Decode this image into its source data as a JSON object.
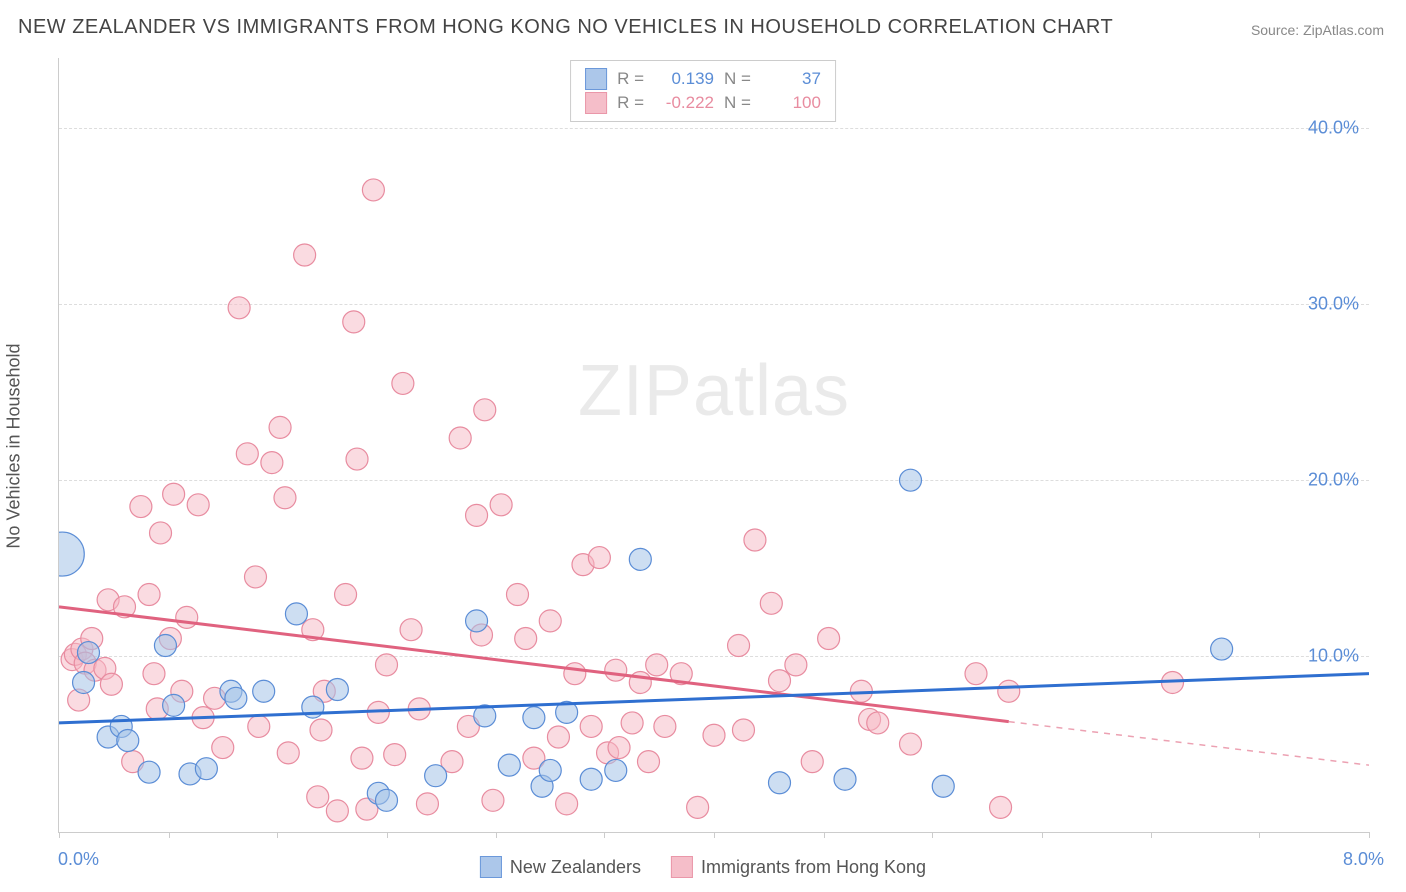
{
  "title": "NEW ZEALANDER VS IMMIGRANTS FROM HONG KONG NO VEHICLES IN HOUSEHOLD CORRELATION CHART",
  "source": "Source: ZipAtlas.com",
  "y_axis_label": "No Vehicles in Household",
  "watermark": "ZIPatlas",
  "corner_labels": {
    "bottom_left": "0.0%",
    "bottom_right": "8.0%"
  },
  "stats": {
    "series_a": {
      "r_label": "R =",
      "r_value": "0.139",
      "n_label": "N =",
      "n_value": "37"
    },
    "series_b": {
      "r_label": "R =",
      "r_value": "-0.222",
      "n_label": "N =",
      "n_value": "100"
    }
  },
  "legend": {
    "a_label": "New Zealanders",
    "b_label": "Immigrants from Hong Kong"
  },
  "chart": {
    "type": "scatter",
    "xlim": [
      0,
      8
    ],
    "ylim": [
      0,
      44
    ],
    "x_ticks": [
      0,
      0.67,
      1.33,
      2.0,
      2.67,
      3.33,
      4.0,
      4.67,
      5.33,
      6.0,
      6.67,
      7.33,
      8.0
    ],
    "y_gridlines": [
      {
        "value": 10,
        "label": "10.0%"
      },
      {
        "value": 20,
        "label": "20.0%"
      },
      {
        "value": 30,
        "label": "30.0%"
      },
      {
        "value": 40,
        "label": "40.0%"
      }
    ],
    "background_color": "#ffffff",
    "grid_color": "#dddddd",
    "axis_color": "#cccccc",
    "label_color": "#5b8dd6",
    "title_color": "#444444",
    "title_fontsize": 20,
    "label_fontsize": 18,
    "series_a": {
      "name": "New Zealanders",
      "fill": "#a4c2e8",
      "fill_opacity": 0.55,
      "stroke": "#5b8dd6",
      "marker_radius": 11,
      "trend_color": "#2f6fd0",
      "trend_width": 3,
      "trend_line": {
        "x1": 0,
        "y1": 6.2,
        "x2": 8.0,
        "y2": 9.0
      },
      "points": [
        {
          "x": 0.02,
          "y": 15.8,
          "r": 22
        },
        {
          "x": 0.15,
          "y": 8.5
        },
        {
          "x": 0.18,
          "y": 10.2
        },
        {
          "x": 0.3,
          "y": 5.4
        },
        {
          "x": 0.38,
          "y": 6.0
        },
        {
          "x": 0.42,
          "y": 5.2
        },
        {
          "x": 0.55,
          "y": 3.4
        },
        {
          "x": 0.65,
          "y": 10.6
        },
        {
          "x": 0.7,
          "y": 7.2
        },
        {
          "x": 0.8,
          "y": 3.3
        },
        {
          "x": 0.9,
          "y": 3.6
        },
        {
          "x": 1.05,
          "y": 8.0
        },
        {
          "x": 1.08,
          "y": 7.6
        },
        {
          "x": 1.25,
          "y": 8.0
        },
        {
          "x": 1.45,
          "y": 12.4
        },
        {
          "x": 1.55,
          "y": 7.1
        },
        {
          "x": 1.7,
          "y": 8.1
        },
        {
          "x": 1.95,
          "y": 2.2
        },
        {
          "x": 2.0,
          "y": 1.8
        },
        {
          "x": 2.3,
          "y": 3.2
        },
        {
          "x": 2.55,
          "y": 12.0
        },
        {
          "x": 2.6,
          "y": 6.6
        },
        {
          "x": 2.75,
          "y": 3.8
        },
        {
          "x": 2.9,
          "y": 6.5
        },
        {
          "x": 2.95,
          "y": 2.6
        },
        {
          "x": 3.0,
          "y": 3.5
        },
        {
          "x": 3.1,
          "y": 6.8
        },
        {
          "x": 3.25,
          "y": 3.0
        },
        {
          "x": 3.4,
          "y": 3.5
        },
        {
          "x": 3.55,
          "y": 15.5
        },
        {
          "x": 4.4,
          "y": 2.8
        },
        {
          "x": 4.8,
          "y": 3.0
        },
        {
          "x": 5.2,
          "y": 20.0
        },
        {
          "x": 5.4,
          "y": 2.6
        },
        {
          "x": 7.1,
          "y": 10.4
        }
      ]
    },
    "series_b": {
      "name": "Immigrants from Hong Kong",
      "fill": "#f5b8c4",
      "fill_opacity": 0.5,
      "stroke": "#e88ca0",
      "marker_radius": 11,
      "trend_color": "#e0627f",
      "trend_width": 3,
      "trend_solid_xmax": 5.8,
      "trend_line": {
        "x1": 0,
        "y1": 12.8,
        "x2": 8.0,
        "y2": 3.8
      },
      "points": [
        {
          "x": 0.08,
          "y": 9.8
        },
        {
          "x": 0.1,
          "y": 10.1
        },
        {
          "x": 0.12,
          "y": 7.5
        },
        {
          "x": 0.14,
          "y": 10.4
        },
        {
          "x": 0.16,
          "y": 9.6
        },
        {
          "x": 0.2,
          "y": 11.0
        },
        {
          "x": 0.22,
          "y": 9.2
        },
        {
          "x": 0.28,
          "y": 9.3
        },
        {
          "x": 0.3,
          "y": 13.2
        },
        {
          "x": 0.32,
          "y": 8.4
        },
        {
          "x": 0.4,
          "y": 12.8
        },
        {
          "x": 0.45,
          "y": 4.0
        },
        {
          "x": 0.5,
          "y": 18.5
        },
        {
          "x": 0.55,
          "y": 13.5
        },
        {
          "x": 0.58,
          "y": 9.0
        },
        {
          "x": 0.6,
          "y": 7.0
        },
        {
          "x": 0.62,
          "y": 17.0
        },
        {
          "x": 0.68,
          "y": 11.0
        },
        {
          "x": 0.7,
          "y": 19.2
        },
        {
          "x": 0.75,
          "y": 8.0
        },
        {
          "x": 0.78,
          "y": 12.2
        },
        {
          "x": 0.85,
          "y": 18.6
        },
        {
          "x": 0.88,
          "y": 6.5
        },
        {
          "x": 0.95,
          "y": 7.6
        },
        {
          "x": 1.0,
          "y": 4.8
        },
        {
          "x": 1.1,
          "y": 29.8
        },
        {
          "x": 1.15,
          "y": 21.5
        },
        {
          "x": 1.2,
          "y": 14.5
        },
        {
          "x": 1.22,
          "y": 6.0
        },
        {
          "x": 1.3,
          "y": 21.0
        },
        {
          "x": 1.35,
          "y": 23.0
        },
        {
          "x": 1.38,
          "y": 19.0
        },
        {
          "x": 1.4,
          "y": 4.5
        },
        {
          "x": 1.5,
          "y": 32.8
        },
        {
          "x": 1.55,
          "y": 11.5
        },
        {
          "x": 1.58,
          "y": 2.0
        },
        {
          "x": 1.6,
          "y": 5.8
        },
        {
          "x": 1.62,
          "y": 8.0
        },
        {
          "x": 1.7,
          "y": 1.2
        },
        {
          "x": 1.75,
          "y": 13.5
        },
        {
          "x": 1.8,
          "y": 29.0
        },
        {
          "x": 1.82,
          "y": 21.2
        },
        {
          "x": 1.85,
          "y": 4.2
        },
        {
          "x": 1.88,
          "y": 1.3
        },
        {
          "x": 1.92,
          "y": 36.5
        },
        {
          "x": 1.95,
          "y": 6.8
        },
        {
          "x": 2.0,
          "y": 9.5
        },
        {
          "x": 2.05,
          "y": 4.4
        },
        {
          "x": 2.1,
          "y": 25.5
        },
        {
          "x": 2.15,
          "y": 11.5
        },
        {
          "x": 2.2,
          "y": 7.0
        },
        {
          "x": 2.25,
          "y": 1.6
        },
        {
          "x": 2.4,
          "y": 4.0
        },
        {
          "x": 2.45,
          "y": 22.4
        },
        {
          "x": 2.5,
          "y": 6.0
        },
        {
          "x": 2.55,
          "y": 18.0
        },
        {
          "x": 2.58,
          "y": 11.2
        },
        {
          "x": 2.6,
          "y": 24.0
        },
        {
          "x": 2.65,
          "y": 1.8
        },
        {
          "x": 2.7,
          "y": 18.6
        },
        {
          "x": 2.8,
          "y": 13.5
        },
        {
          "x": 2.85,
          "y": 11.0
        },
        {
          "x": 2.9,
          "y": 4.2
        },
        {
          "x": 3.0,
          "y": 12.0
        },
        {
          "x": 3.05,
          "y": 5.4
        },
        {
          "x": 3.1,
          "y": 1.6
        },
        {
          "x": 3.15,
          "y": 9.0
        },
        {
          "x": 3.2,
          "y": 15.2
        },
        {
          "x": 3.25,
          "y": 6.0
        },
        {
          "x": 3.3,
          "y": 15.6
        },
        {
          "x": 3.35,
          "y": 4.5
        },
        {
          "x": 3.4,
          "y": 9.2
        },
        {
          "x": 3.42,
          "y": 4.8
        },
        {
          "x": 3.5,
          "y": 6.2
        },
        {
          "x": 3.55,
          "y": 8.5
        },
        {
          "x": 3.6,
          "y": 4.0
        },
        {
          "x": 3.65,
          "y": 9.5
        },
        {
          "x": 3.7,
          "y": 6.0
        },
        {
          "x": 3.8,
          "y": 9.0
        },
        {
          "x": 3.9,
          "y": 1.4
        },
        {
          "x": 4.0,
          "y": 5.5
        },
        {
          "x": 4.15,
          "y": 10.6
        },
        {
          "x": 4.18,
          "y": 5.8
        },
        {
          "x": 4.25,
          "y": 16.6
        },
        {
          "x": 4.35,
          "y": 13.0
        },
        {
          "x": 4.4,
          "y": 8.6
        },
        {
          "x": 4.5,
          "y": 9.5
        },
        {
          "x": 4.6,
          "y": 4.0
        },
        {
          "x": 4.7,
          "y": 11.0
        },
        {
          "x": 4.9,
          "y": 8.0
        },
        {
          "x": 4.95,
          "y": 6.4
        },
        {
          "x": 5.0,
          "y": 6.2
        },
        {
          "x": 5.2,
          "y": 5.0
        },
        {
          "x": 5.6,
          "y": 9.0
        },
        {
          "x": 5.75,
          "y": 1.4
        },
        {
          "x": 5.8,
          "y": 8.0
        },
        {
          "x": 6.8,
          "y": 8.5
        }
      ]
    }
  }
}
